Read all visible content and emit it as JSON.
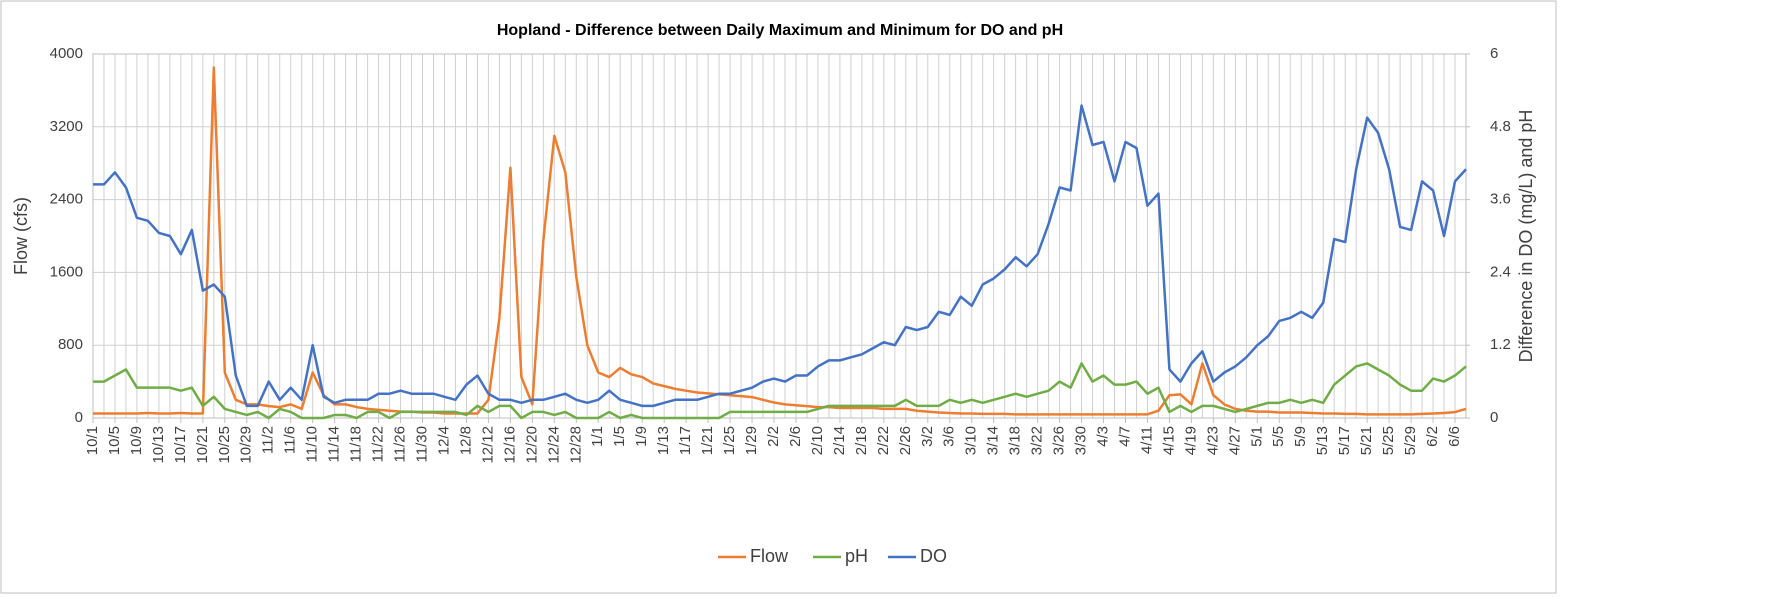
{
  "chart_data": {
    "type": "line",
    "title": "Hopland - Difference between Daily Maximum and Minimum for DO and pH",
    "y_label": "Flow (cfs)",
    "y2_label": "Difference in DO (mg/L) and pH",
    "categories": [
      "10/1",
      null,
      "10/5",
      null,
      "10/9",
      null,
      "10/13",
      null,
      "10/17",
      null,
      "10/21",
      null,
      "10/25",
      null,
      "10/29",
      null,
      "11/2",
      null,
      "11/6",
      null,
      "11/10",
      null,
      "11/14",
      null,
      "11/18",
      null,
      "11/22",
      null,
      "11/26",
      null,
      "11/30",
      null,
      "12/4",
      null,
      "12/8",
      null,
      "12/12",
      null,
      "12/16",
      null,
      "12/20",
      null,
      "12/24",
      null,
      "12/28",
      null,
      "1/1",
      null,
      "1/5",
      null,
      "1/9",
      null,
      "1/13",
      null,
      "1/17",
      null,
      "1/21",
      null,
      "1/25",
      null,
      "1/29",
      null,
      "2/2",
      null,
      "2/6",
      null,
      "2/10",
      null,
      "2/14",
      null,
      "2/18",
      null,
      "2/22",
      null,
      "2/26",
      null,
      "3/2",
      null,
      "3/6",
      null,
      "3/10",
      null,
      "3/14",
      null,
      "3/18",
      null,
      "3/22",
      null,
      "3/26",
      null,
      "3/30",
      null,
      "4/3",
      null,
      "4/7",
      null,
      "4/11",
      null,
      "4/15",
      null,
      "4/19",
      null,
      "4/23",
      null,
      "4/27",
      null,
      "5/1",
      null,
      "5/5",
      null,
      "5/9",
      null,
      "5/13",
      null,
      "5/17",
      null,
      "5/21",
      null,
      "5/25",
      null,
      "5/29",
      null,
      "6/2",
      null,
      "6/6",
      null
    ],
    "series": [
      {
        "name": "Flow",
        "color": "#ed7d31",
        "axis": "y",
        "values": [
          50,
          50,
          50,
          50,
          50,
          55,
          50,
          50,
          55,
          50,
          50,
          3850,
          500,
          200,
          150,
          150,
          130,
          120,
          150,
          100,
          500,
          250,
          150,
          150,
          120,
          100,
          90,
          80,
          70,
          70,
          60,
          60,
          50,
          50,
          50,
          50,
          200,
          1100,
          2750,
          450,
          150,
          1950,
          3100,
          2700,
          1550,
          800,
          500,
          450,
          550,
          480,
          450,
          380,
          350,
          320,
          300,
          280,
          270,
          260,
          250,
          240,
          230,
          200,
          170,
          150,
          140,
          130,
          120,
          120,
          110,
          110,
          110,
          110,
          100,
          100,
          100,
          80,
          70,
          60,
          55,
          50,
          50,
          45,
          45,
          45,
          40,
          40,
          40,
          40,
          40,
          40,
          40,
          40,
          40,
          40,
          40,
          40,
          40,
          80,
          250,
          260,
          150,
          600,
          250,
          150,
          100,
          80,
          70,
          70,
          60,
          60,
          60,
          55,
          50,
          50,
          45,
          45,
          40,
          40,
          40,
          40,
          40,
          45,
          50,
          55,
          65,
          100
        ]
      },
      {
        "name": "pH",
        "color": "#70ad47",
        "axis": "y2",
        "values": [
          0.6,
          0.6,
          0.7,
          0.8,
          0.5,
          0.5,
          0.5,
          0.5,
          0.45,
          0.5,
          0.2,
          0.35,
          0.15,
          0.1,
          0.05,
          0.1,
          0,
          0.15,
          0.1,
          0,
          0,
          0,
          0.05,
          0.05,
          0,
          0.1,
          0.1,
          0,
          0.1,
          0.1,
          0.1,
          0.1,
          0.1,
          0.1,
          0.05,
          0.2,
          0.1,
          0.2,
          0.2,
          0,
          0.1,
          0.1,
          0.05,
          0.1,
          0,
          0,
          0,
          0.1,
          0,
          0.05,
          0,
          0,
          0,
          0,
          0,
          0,
          0,
          0,
          0.1,
          0.1,
          0.1,
          0.1,
          0.1,
          0.1,
          0.1,
          0.1,
          0.15,
          0.2,
          0.2,
          0.2,
          0.2,
          0.2,
          0.2,
          0.2,
          0.3,
          0.2,
          0.2,
          0.2,
          0.3,
          0.25,
          0.3,
          0.25,
          0.3,
          0.35,
          0.4,
          0.35,
          0.4,
          0.45,
          0.6,
          0.5,
          0.9,
          0.6,
          0.7,
          0.55,
          0.55,
          0.6,
          0.4,
          0.5,
          0.1,
          0.2,
          0.1,
          0.2,
          0.2,
          0.15,
          0.1,
          0.15,
          0.2,
          0.25,
          0.25,
          0.3,
          0.25,
          0.3,
          0.25,
          0.55,
          0.7,
          0.85,
          0.9,
          0.8,
          0.7,
          0.55,
          0.45,
          0.45,
          0.65,
          0.6,
          0.7,
          0.85
        ]
      },
      {
        "name": "DO",
        "color": "#4472c4",
        "axis": "y2",
        "values": [
          3.85,
          3.85,
          4.05,
          3.8,
          3.3,
          3.25,
          3.05,
          3.0,
          2.7,
          3.1,
          2.1,
          2.2,
          2.0,
          0.7,
          0.2,
          0.2,
          0.6,
          0.3,
          0.5,
          0.3,
          1.2,
          0.35,
          0.25,
          0.3,
          0.3,
          0.3,
          0.4,
          0.4,
          0.45,
          0.4,
          0.4,
          0.4,
          0.35,
          0.3,
          0.55,
          0.7,
          0.4,
          0.3,
          0.3,
          0.25,
          0.3,
          0.3,
          0.35,
          0.4,
          0.3,
          0.25,
          0.3,
          0.45,
          0.3,
          0.25,
          0.2,
          0.2,
          0.25,
          0.3,
          0.3,
          0.3,
          0.35,
          0.4,
          0.4,
          0.45,
          0.5,
          0.6,
          0.65,
          0.6,
          0.7,
          0.7,
          0.85,
          0.95,
          0.95,
          1.0,
          1.05,
          1.15,
          1.25,
          1.2,
          1.5,
          1.45,
          1.5,
          1.75,
          1.7,
          2.0,
          1.85,
          2.2,
          2.3,
          2.45,
          2.65,
          2.5,
          2.7,
          3.2,
          3.8,
          3.75,
          5.15,
          4.5,
          4.55,
          3.9,
          4.55,
          4.45,
          3.5,
          3.7,
          0.8,
          0.6,
          0.9,
          1.1,
          0.6,
          0.75,
          0.85,
          1.0,
          1.2,
          1.35,
          1.6,
          1.65,
          1.75,
          1.65,
          1.9,
          2.95,
          2.9,
          4.1,
          4.95,
          4.7,
          4.1,
          3.15,
          3.1,
          3.9,
          3.75,
          3.0,
          3.9,
          4.1
        ]
      }
    ],
    "ylim": [
      0,
      4000
    ],
    "yticks": [
      0,
      800,
      1600,
      2400,
      3200,
      4000
    ],
    "y2lim": [
      0,
      6
    ],
    "y2ticks": [
      0,
      1.2,
      2.4,
      3.6,
      4.8,
      6
    ],
    "grid": true,
    "legend": "bottom"
  }
}
